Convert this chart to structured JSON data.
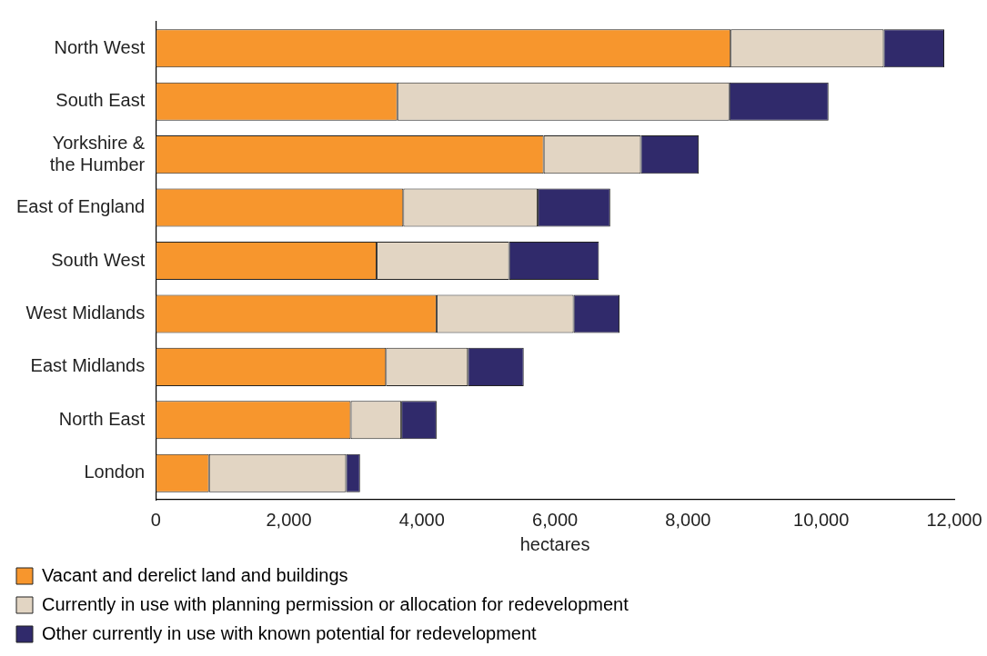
{
  "chart_data": {
    "type": "bar",
    "orientation": "horizontal",
    "stacked": true,
    "xlabel": "hectares",
    "categories": [
      "North West",
      "South East",
      "Yorkshire &\nthe Humber",
      "East of England",
      "South West",
      "West Midlands",
      "East Midlands",
      "North East",
      "London"
    ],
    "series": [
      {
        "name": "Vacant and derelict land and buildings",
        "color": "#f7962d",
        "values": [
          8640,
          3630,
          5830,
          3720,
          3320,
          4220,
          3460,
          2930,
          800
        ]
      },
      {
        "name": "Currently in use with planning permission or allocation for redevelopment",
        "color": "#e2d5c3",
        "values": [
          2300,
          4990,
          1460,
          2020,
          1990,
          2060,
          1230,
          760,
          2060
        ]
      },
      {
        "name": "Other currently in use with known potential for redevelopment",
        "color": "#302a6b",
        "values": [
          910,
          1490,
          870,
          1090,
          1350,
          690,
          840,
          530,
          210
        ]
      }
    ],
    "xlim": [
      0,
      12000
    ],
    "xticks": [
      0,
      {
        "value": 2000,
        "label": "2,000"
      },
      {
        "value": 4000,
        "label": "4,000"
      },
      {
        "value": 6000,
        "label": "6,000"
      },
      {
        "value": 8000,
        "label": "8,000"
      },
      {
        "value": 10000,
        "label": "10,000"
      },
      {
        "value": 12000,
        "label": "12,000"
      }
    ],
    "grid": false,
    "legend": "bottom"
  }
}
